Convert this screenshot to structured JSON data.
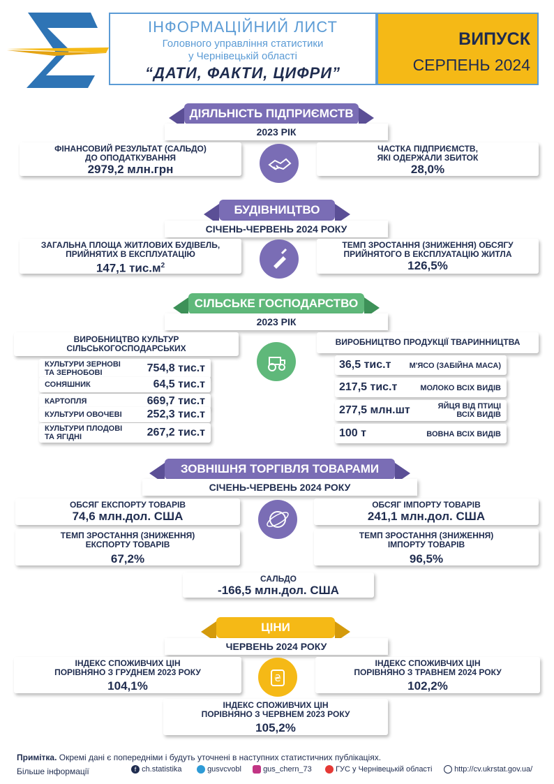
{
  "header": {
    "title_line1": "ІНФОРМАЦІЙНИЙ ЛИСТ",
    "title_line2": "Головного управління статистики",
    "title_line3": "у Чернівецькій області",
    "title_line4": "“ДАТИ, ФАКТИ, ЦИФРИ”",
    "issue_label": "ВИПУСК",
    "issue_date": "СЕРПЕНЬ 2024"
  },
  "colors": {
    "navy": "#1f2c4f",
    "blue": "#2e74b5",
    "purple": "#7a6db5",
    "green": "#5fb87a",
    "yellow": "#f5b916",
    "box_blue": "#5b9bd5"
  },
  "enterprises": {
    "title": "ДІЯЛЬНІСТЬ ПІДПРИЄМСТВ",
    "period": "2023 РІК",
    "icon": "handshake-icon",
    "left_label_1": "ФІНАНСОВИЙ РЕЗУЛЬТАТ (САЛЬДО)",
    "left_label_2": "ДО ОПОДАТКУВАННЯ",
    "left_value": "2979,2  млн.грн",
    "right_label_1": "ЧАСТКА ПІДПРИЄМСТВ,",
    "right_label_2": "ЯКІ ОДЕРЖАЛИ ЗБИТОК",
    "right_value": "28,0%"
  },
  "construction": {
    "title": "БУДІВНИЦТВО",
    "period": "СІЧЕНЬ-ЧЕРВЕНЬ 2024 РОКУ",
    "icon": "trowel-icon",
    "left_label_1": "ЗАГАЛЬНА ПЛОЩА ЖИТЛОВИХ БУДІВЕЛЬ,",
    "left_label_2": "ПРИЙНЯТИХ В ЕКСПЛУАТАЦІЮ",
    "left_value": "147,1 тис.м",
    "left_value_sup": "2",
    "right_label_1": "ТЕМП ЗРОСТАННЯ (ЗНИЖЕННЯ) ОБСЯГУ",
    "right_label_2": "ПРИЙНЯТОГО В ЕКСПЛУАТАЦІЮ ЖИТЛА",
    "right_value": "126,5%"
  },
  "agriculture": {
    "title": "СІЛЬСЬКЕ ГОСПОДАРСТВО",
    "period": "2023 РІК",
    "icon": "tractor-icon",
    "crops_title_1": "ВИРОБНИЦТВО КУЛЬТУР",
    "crops_title_2": "СІЛЬСЬКОГОСПОДАРСЬКИХ",
    "crops": [
      {
        "label_1": "КУЛЬТУРИ ЗЕРНОВІ",
        "label_2": "ТА ЗЕРНОБОВІ",
        "value": "754,8 тис.т"
      },
      {
        "label_1": "СОНЯШНИК",
        "label_2": "",
        "value": "64,5 тис.т"
      },
      {
        "label_1": "КАРТОПЛЯ",
        "label_2": "",
        "value": "669,7 тис.т"
      },
      {
        "label_1": "КУЛЬТУРИ ОВОЧЕВІ",
        "label_2": "",
        "value": "252,3 тис.т"
      },
      {
        "label_1": "КУЛЬТУРИ ПЛОДОВІ",
        "label_2": "ТА ЯГІДНІ",
        "value": "267,2 тис.т"
      }
    ],
    "livestock_title": "ВИРОБНИЦТВО ПРОДУКЦІЇ ТВАРИННИЦТВА",
    "livestock": [
      {
        "value": "36,5 тис.т",
        "label_1": "М'ЯСО (ЗАБІЙНА МАСА)",
        "label_2": ""
      },
      {
        "value": "217,5 тис.т",
        "label_1": "МОЛОКО ВСІХ ВИДІВ",
        "label_2": ""
      },
      {
        "value": "277,5 млн.шт",
        "label_1": "ЯЙЦЯ ВІД ПТИЦІ",
        "label_2": "ВСІХ ВИДІВ"
      },
      {
        "value": "100 т",
        "label_1": "ВОВНА ВСІХ ВИДІВ",
        "label_2": ""
      }
    ]
  },
  "trade": {
    "title": "ЗОВНІШНЯ ТОРГІВЛЯ ТОВАРАМИ",
    "period": "СІЧЕНЬ-ЧЕРВЕНЬ 2024 РОКУ",
    "icon": "globe-icon",
    "export_label": "ОБСЯГ ЕКСПОРТУ ТОВАРІВ",
    "export_value": "74,6 млн.дол. США",
    "import_label": "ОБСЯГ ІМПОРТУ ТОВАРІВ",
    "import_value": "241,1 млн.дол. США",
    "export_rate_label_1": "ТЕМП ЗРОСТАННЯ (ЗНИЖЕННЯ)",
    "export_rate_label_2": "ЕКСПОРТУ ТОВАРІВ",
    "export_rate_value": "67,2%",
    "import_rate_label_1": "ТЕМП ЗРОСТАННЯ (ЗНИЖЕННЯ)",
    "import_rate_label_2": "ІМПОРТУ ТОВАРІВ",
    "import_rate_value": "96,5%",
    "balance_label": "САЛЬДО",
    "balance_value": "-166,5 млн.дол. США"
  },
  "prices": {
    "title": "ЦІНИ",
    "period": "ЧЕРВЕНЬ 2024 РОКУ",
    "icon": "hryvnia-coin-icon",
    "left_label_1": "ІНДЕКС СПОЖИВЧИХ ЦІН",
    "left_label_2": "ПОРІВНЯНО З ГРУДНЕМ 2023 РОКУ",
    "left_value": "104,1%",
    "right_label_1": "ІНДЕКС СПОЖИВЧИХ ЦІН",
    "right_label_2": "ПОРІВНЯНО З ТРАВНЕМ 2024 РОКУ",
    "right_value": "102,2%",
    "bottom_label_1": "ІНДЕКС СПОЖИВЧИХ ЦІН",
    "bottom_label_2": "ПОРІВНЯНО З ЧЕРВНЕМ 2023 РОКУ",
    "bottom_value": "105,2%"
  },
  "footer": {
    "note_bold": "Примітка.",
    "note_text": " Окремі дані є попередніми і будуть уточнені в наступних статистичних публікаціях.",
    "more_info": "Більше інформації",
    "links": [
      {
        "icon": "facebook-icon",
        "text": "ch.statistika"
      },
      {
        "icon": "twitter-icon",
        "text": "gusvcvobl"
      },
      {
        "icon": "instagram-icon",
        "text": "gus_chern_73"
      },
      {
        "icon": "youtube-icon",
        "text": "ГУС у Чернівецькій області"
      },
      {
        "icon": "web-icon",
        "text": "http://cv.ukrstat.gov.ua/"
      }
    ]
  }
}
